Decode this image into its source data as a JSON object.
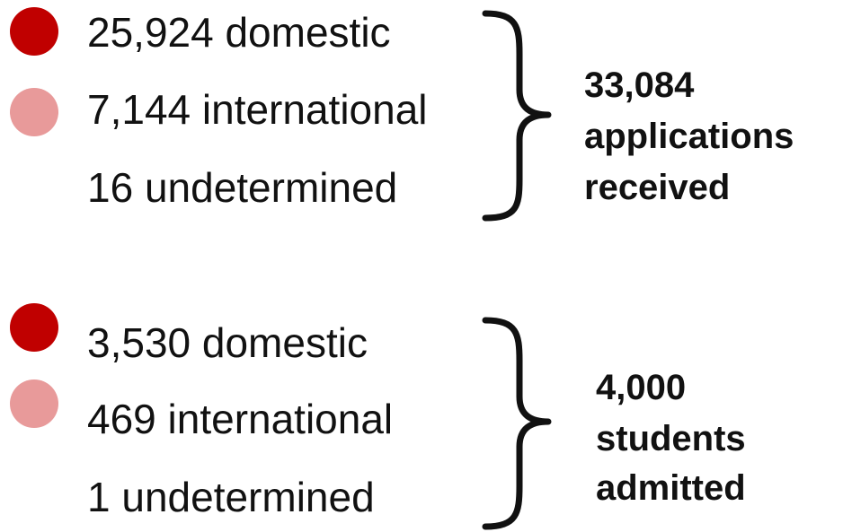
{
  "groups": [
    {
      "items": [
        {
          "text": "25,924 domestic",
          "color": "#c00000"
        },
        {
          "text": "7,144 international",
          "color": "#e89a9a"
        },
        {
          "text": "16 undetermined"
        }
      ],
      "total": [
        "33,084",
        "applications",
        "received"
      ]
    },
    {
      "items": [
        {
          "text": "3,530 domestic",
          "color": "#c00000"
        },
        {
          "text": "469 international",
          "color": "#e89a9a"
        },
        {
          "text": "1 undetermined"
        }
      ],
      "total": [
        "4,000",
        "students",
        "admitted"
      ]
    }
  ]
}
